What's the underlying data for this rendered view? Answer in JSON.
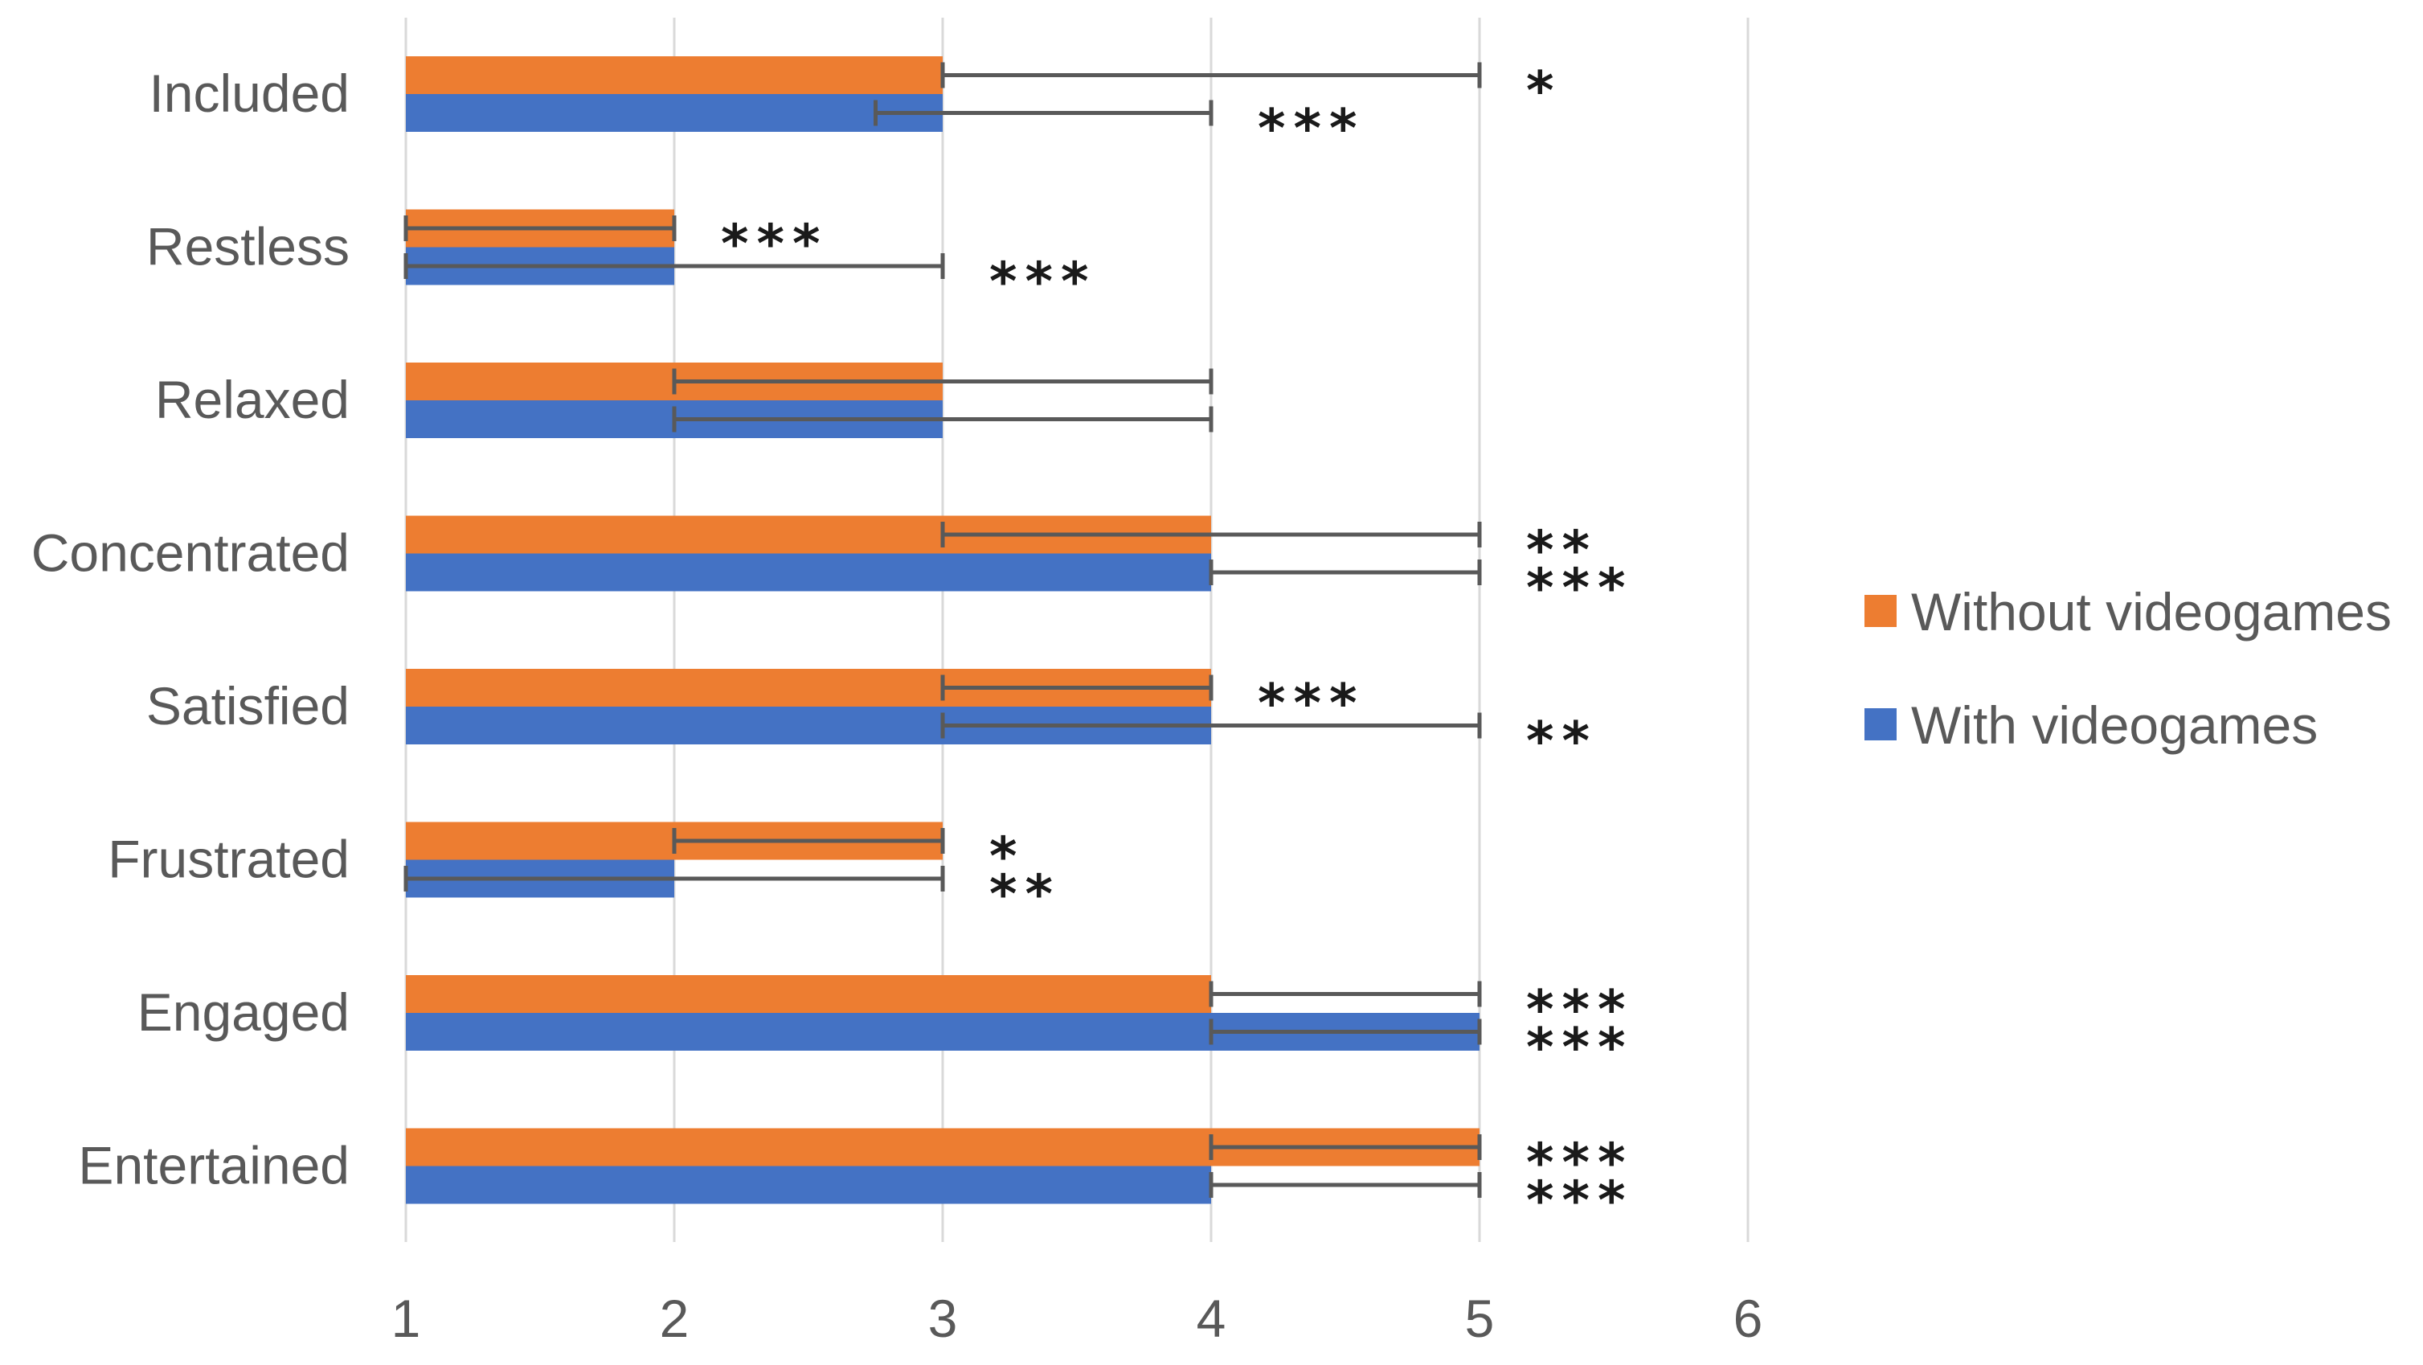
{
  "chart_data": {
    "type": "bar",
    "orientation": "horizontal",
    "title": "",
    "xlabel": "",
    "ylabel": "",
    "xlim": [
      1,
      6
    ],
    "xticks": [
      1,
      2,
      3,
      4,
      5,
      6
    ],
    "grid": true,
    "legend_position": "right",
    "categories": [
      "Included",
      "Restless",
      "Relaxed",
      "Concentrated",
      "Satisfied",
      "Frustrated",
      "Engaged",
      "Entertained"
    ],
    "series": [
      {
        "name": "Without videogames",
        "color": "#ED7D31",
        "values": [
          3,
          2,
          3,
          4,
          4,
          3,
          4,
          5
        ],
        "error_low": [
          3,
          1,
          2,
          3,
          3,
          2,
          4,
          4
        ],
        "error_high": [
          5,
          2,
          4,
          5,
          4,
          3,
          5,
          5
        ],
        "significance": [
          "*",
          "***",
          "",
          "**",
          "***",
          "*",
          "***",
          "***"
        ]
      },
      {
        "name": "With videogames",
        "color": "#4472C4",
        "values": [
          3,
          2,
          3,
          4,
          4,
          2,
          5,
          4
        ],
        "error_low": [
          2.75,
          1,
          2,
          4,
          3,
          1,
          4,
          4
        ],
        "error_high": [
          4,
          3,
          4,
          5,
          5,
          3,
          5,
          5
        ],
        "significance": [
          "***",
          "***",
          "",
          "***",
          "**",
          "**",
          "***",
          "***"
        ]
      }
    ]
  }
}
